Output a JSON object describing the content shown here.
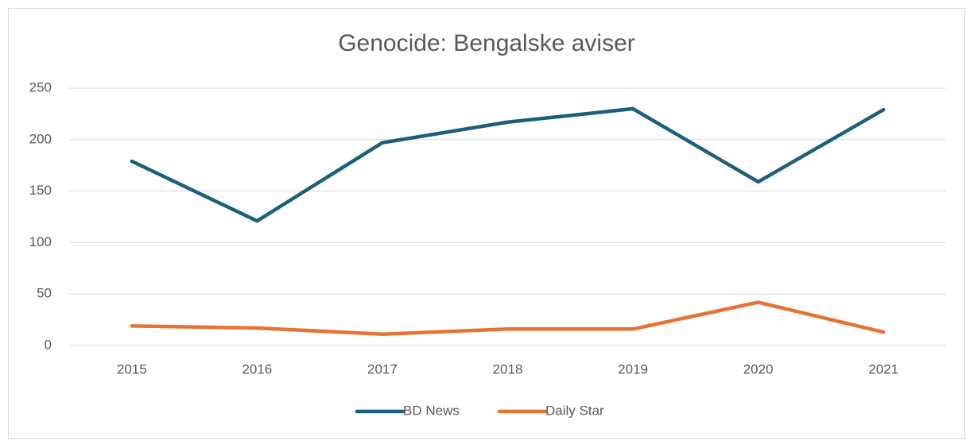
{
  "chart_data": {
    "type": "line",
    "title": "Genocide: Bengalske aviser",
    "categories": [
      "2015",
      "2016",
      "2017",
      "2018",
      "2019",
      "2020",
      "2021"
    ],
    "series": [
      {
        "name": "BD News",
        "color": "#1b5e7e",
        "values": [
          179,
          121,
          197,
          217,
          230,
          159,
          229
        ]
      },
      {
        "name": "Daily Star",
        "color": "#e97132",
        "values": [
          19,
          17,
          11,
          16,
          16,
          42,
          13
        ]
      }
    ],
    "ylim": [
      0,
      250
    ],
    "yticks": [
      0,
      50,
      100,
      150,
      200,
      250
    ],
    "grid": true,
    "legend": "bottom"
  }
}
